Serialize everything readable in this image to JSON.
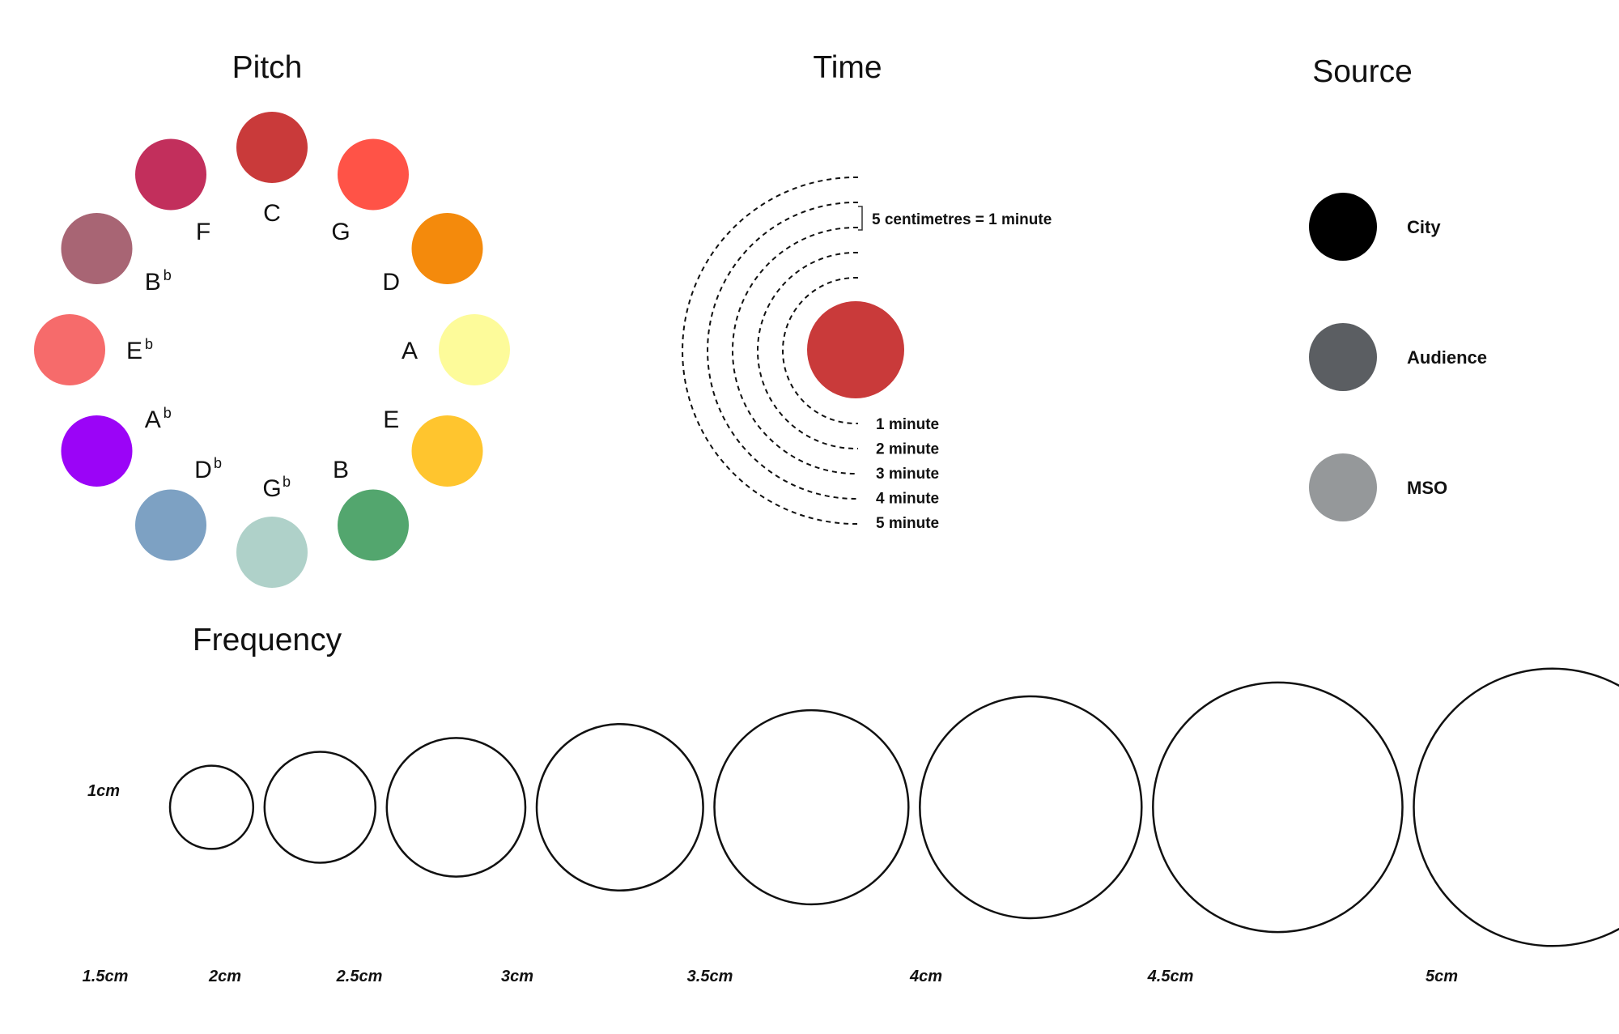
{
  "pitch": {
    "title": "Pitch",
    "notes": [
      {
        "name": "C",
        "sup": "",
        "color": "#C93A3A"
      },
      {
        "name": "G",
        "sup": "",
        "color": "#FF5347"
      },
      {
        "name": "D",
        "sup": "",
        "color": "#F48A0C"
      },
      {
        "name": "A",
        "sup": "",
        "color": "#FDFB9A"
      },
      {
        "name": "E",
        "sup": "",
        "color": "#FFC52E"
      },
      {
        "name": "B",
        "sup": "",
        "color": "#53A66E"
      },
      {
        "name": "G",
        "sup": "b",
        "color": "#AFD1C9"
      },
      {
        "name": "D",
        "sup": "b",
        "color": "#7DA1C3"
      },
      {
        "name": "A",
        "sup": "b",
        "color": "#9B04F7"
      },
      {
        "name": "E",
        "sup": "b",
        "color": "#F66B6B"
      },
      {
        "name": "B",
        "sup": "b",
        "color": "#A86574"
      },
      {
        "name": "F",
        "sup": "",
        "color": "#C22F5C"
      }
    ]
  },
  "time": {
    "title": "Time",
    "scale_note": "5 centimetres = 1 minute",
    "marker_color": "#C93A3A",
    "rings": [
      "1 minute",
      "2 minute",
      "3 minute",
      "4 minute",
      "5 minute"
    ]
  },
  "source": {
    "title": "Source",
    "items": [
      {
        "label": "City",
        "color": "#000000"
      },
      {
        "label": "Audience",
        "color": "#5B5E62"
      },
      {
        "label": "MSO",
        "color": "#95989A"
      }
    ]
  },
  "frequency": {
    "title": "Frequency",
    "reference_label": "1cm",
    "sizes": [
      {
        "label": "1.5cm",
        "cm": 1.5
      },
      {
        "label": "2cm",
        "cm": 2
      },
      {
        "label": "2.5cm",
        "cm": 2.5
      },
      {
        "label": "3cm",
        "cm": 3
      },
      {
        "label": "3.5cm",
        "cm": 3.5
      },
      {
        "label": "4cm",
        "cm": 4
      },
      {
        "label": "4.5cm",
        "cm": 4.5
      },
      {
        "label": "5cm",
        "cm": 5
      }
    ]
  }
}
